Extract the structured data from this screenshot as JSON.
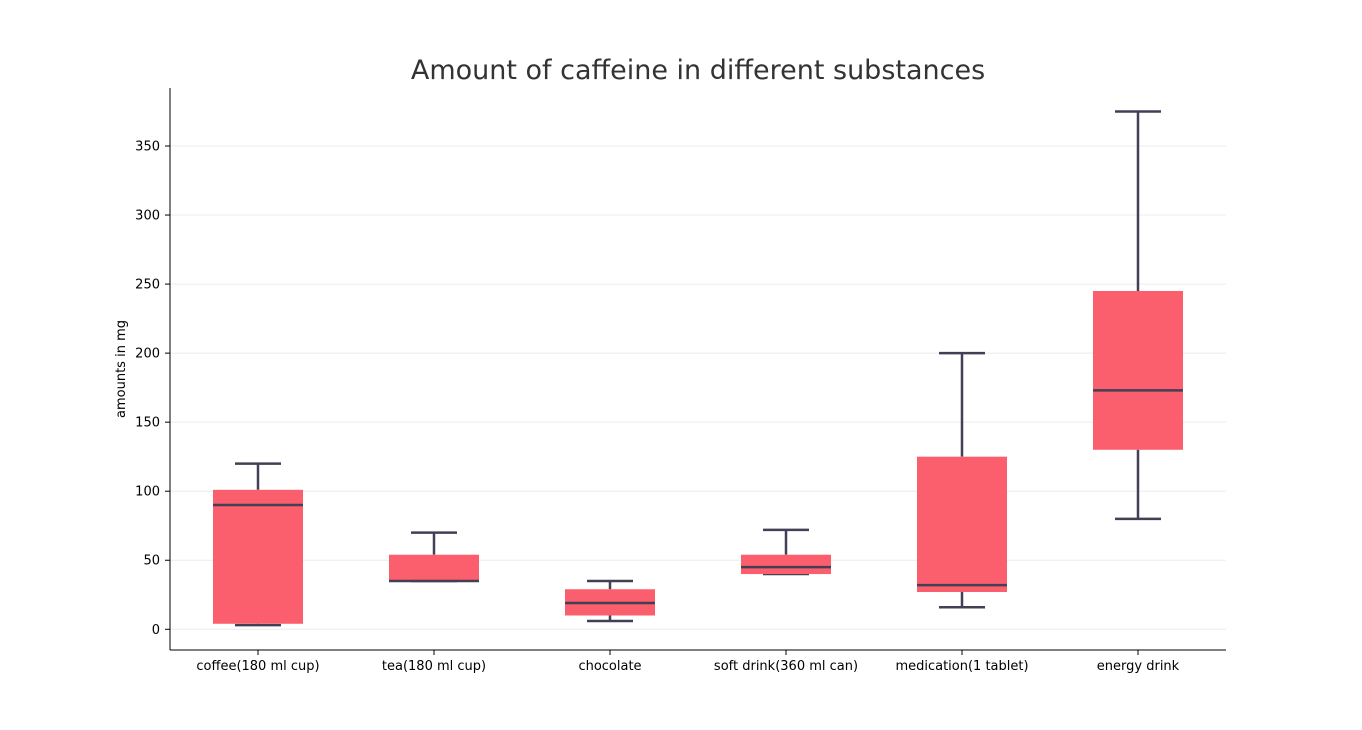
{
  "colors": {
    "box_fill": "#fb5f6d",
    "line": "#433f55",
    "grid": "#ececec",
    "axis": "#000000"
  },
  "chart_data": {
    "type": "box",
    "title": "Amount of caffeine in different substances",
    "xlabel": "",
    "ylabel": "amounts in mg",
    "ylim": [
      -15,
      392
    ],
    "yticks": [
      0,
      50,
      100,
      150,
      200,
      250,
      300,
      350
    ],
    "grid": "horizontal",
    "categories": [
      "coffee(180 ml cup)",
      "tea(180 ml cup)",
      "chocolate",
      "soft drink(360 ml can)",
      "medication(1 tablet)",
      "energy drink"
    ],
    "boxes": [
      {
        "category": "coffee(180 ml cup)",
        "whisker_low": 3,
        "q1": 4,
        "median": 90,
        "q3": 101,
        "whisker_high": 120
      },
      {
        "category": "tea(180 ml cup)",
        "whisker_low": 35,
        "q1": 35,
        "median": 35,
        "q3": 54,
        "whisker_high": 70
      },
      {
        "category": "chocolate",
        "whisker_low": 6,
        "q1": 10,
        "median": 19,
        "q3": 29,
        "whisker_high": 35
      },
      {
        "category": "soft drink(360 ml can)",
        "whisker_low": 40,
        "q1": 40,
        "median": 45,
        "q3": 54,
        "whisker_high": 72
      },
      {
        "category": "medication(1 tablet)",
        "whisker_low": 16,
        "q1": 27,
        "median": 32,
        "q3": 125,
        "whisker_high": 200
      },
      {
        "category": "energy drink",
        "whisker_low": 80,
        "q1": 130,
        "median": 173,
        "q3": 245,
        "whisker_high": 375
      }
    ]
  }
}
